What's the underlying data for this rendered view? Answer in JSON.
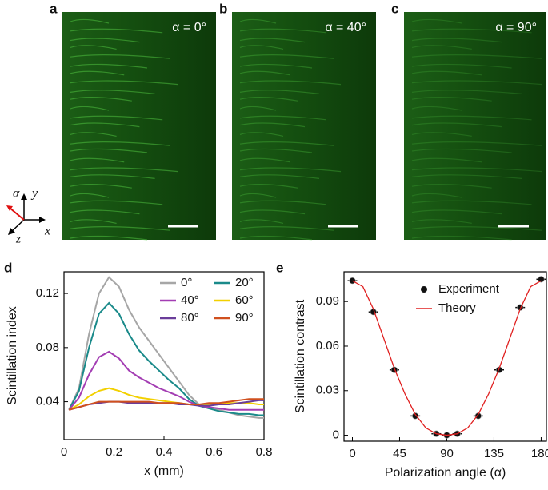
{
  "panels": [
    {
      "label": "a",
      "caption": "α = 0°"
    },
    {
      "label": "b",
      "caption": "α = 40°"
    },
    {
      "label": "c",
      "caption": "α = 90°"
    }
  ],
  "axes_inset": {
    "alpha": "α",
    "y": "y",
    "z": "z",
    "x": "x"
  },
  "chart_data": [
    {
      "type": "line",
      "label": "d",
      "xlabel": "x (mm)",
      "ylabel": "Scintillation index",
      "x": [
        0.02,
        0.06,
        0.1,
        0.14,
        0.18,
        0.22,
        0.26,
        0.3,
        0.34,
        0.38,
        0.42,
        0.46,
        0.5,
        0.54,
        0.58,
        0.62,
        0.66,
        0.7,
        0.74,
        0.78,
        0.8
      ],
      "series": [
        {
          "name": "0°",
          "color": "#a6a6a6",
          "values": [
            0.034,
            0.05,
            0.09,
            0.12,
            0.132,
            0.125,
            0.108,
            0.095,
            0.085,
            0.075,
            0.065,
            0.055,
            0.045,
            0.038,
            0.036,
            0.034,
            0.032,
            0.03,
            0.029,
            0.028,
            0.028
          ]
        },
        {
          "name": "20°",
          "color": "#1a8a8a",
          "values": [
            0.034,
            0.048,
            0.08,
            0.105,
            0.113,
            0.105,
            0.09,
            0.078,
            0.07,
            0.063,
            0.056,
            0.05,
            0.042,
            0.037,
            0.035,
            0.033,
            0.032,
            0.031,
            0.031,
            0.03,
            0.03
          ]
        },
        {
          "name": "40°",
          "color": "#a33db3",
          "values": [
            0.034,
            0.043,
            0.06,
            0.073,
            0.077,
            0.072,
            0.063,
            0.058,
            0.054,
            0.05,
            0.047,
            0.044,
            0.04,
            0.037,
            0.036,
            0.035,
            0.034,
            0.034,
            0.034,
            0.034,
            0.034
          ]
        },
        {
          "name": "60°",
          "color": "#f2d000",
          "values": [
            0.034,
            0.038,
            0.044,
            0.048,
            0.05,
            0.048,
            0.045,
            0.043,
            0.042,
            0.041,
            0.04,
            0.039,
            0.038,
            0.038,
            0.038,
            0.038,
            0.039,
            0.039,
            0.039,
            0.038,
            0.038
          ]
        },
        {
          "name": "80°",
          "color": "#6a3d9a",
          "values": [
            0.034,
            0.036,
            0.038,
            0.039,
            0.04,
            0.04,
            0.039,
            0.039,
            0.039,
            0.039,
            0.039,
            0.038,
            0.038,
            0.037,
            0.037,
            0.038,
            0.038,
            0.039,
            0.04,
            0.041,
            0.041
          ]
        },
        {
          "name": "90°",
          "color": "#d0501e",
          "values": [
            0.034,
            0.036,
            0.038,
            0.04,
            0.04,
            0.04,
            0.04,
            0.04,
            0.04,
            0.039,
            0.039,
            0.039,
            0.038,
            0.038,
            0.039,
            0.039,
            0.04,
            0.041,
            0.042,
            0.042,
            0.042
          ]
        }
      ],
      "xlim": [
        0,
        0.8
      ],
      "ylim": [
        0.012,
        0.136
      ],
      "xticks": [
        0,
        0.2,
        0.4,
        0.6,
        0.8
      ],
      "yticks": [
        0.04,
        0.08,
        0.12
      ],
      "legend": "upper right",
      "legend_columns": 2
    },
    {
      "type": "scatter",
      "label": "e",
      "xlabel": "Polarization angle (α)",
      "ylabel": "Scintillation contrast",
      "series": [
        {
          "name": "Experiment",
          "color": "#111111",
          "style": "points",
          "x": [
            0,
            20,
            40,
            60,
            80,
            90,
            100,
            120,
            140,
            160,
            180
          ],
          "values": [
            0.104,
            0.083,
            0.044,
            0.013,
            0.001,
            0.0,
            0.001,
            0.013,
            0.044,
            0.086,
            0.105
          ]
        },
        {
          "name": "Theory",
          "color": "#e02020",
          "style": "line",
          "x": [
            0,
            10,
            20,
            30,
            40,
            50,
            60,
            70,
            80,
            90,
            100,
            110,
            120,
            130,
            140,
            150,
            160,
            170,
            180
          ],
          "values": [
            0.104,
            0.1,
            0.085,
            0.065,
            0.045,
            0.028,
            0.014,
            0.005,
            0.001,
            0,
            0.001,
            0.005,
            0.014,
            0.028,
            0.045,
            0.065,
            0.085,
            0.1,
            0.104
          ]
        }
      ],
      "xlim": [
        -8,
        185
      ],
      "ylim": [
        -0.004,
        0.11
      ],
      "xticks": [
        0,
        45,
        90,
        135,
        180
      ],
      "yticks": [
        0,
        0.03,
        0.06,
        0.09
      ],
      "legend": "upper center"
    }
  ]
}
